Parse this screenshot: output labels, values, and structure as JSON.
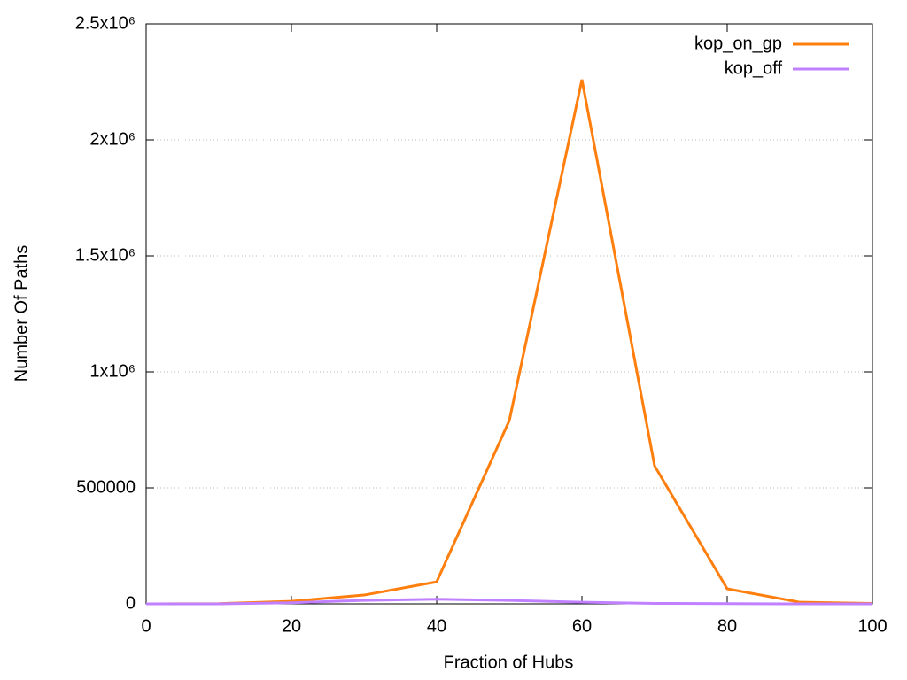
{
  "chart_data": {
    "type": "line",
    "x_label": "Fraction of Hubs",
    "y_label": "Number Of Paths",
    "x": [
      0,
      10,
      20,
      30,
      40,
      50,
      60,
      70,
      80,
      90,
      100
    ],
    "series": [
      {
        "name": "kop_on_gp",
        "color": "#ff7f0e",
        "values": [
          0,
          1000,
          11000,
          38000,
          95000,
          790000,
          2260000,
          595000,
          65000,
          7000,
          2000
        ]
      },
      {
        "name": "kop_off",
        "color": "#c080ff",
        "values": [
          0,
          0,
          5000,
          15000,
          20000,
          15000,
          7000,
          2000,
          1000,
          0,
          0
        ]
      }
    ],
    "xlim": [
      0,
      100
    ],
    "xticks": [
      0,
      20,
      40,
      60,
      80,
      100
    ],
    "ylim": [
      0,
      2500000
    ],
    "yticks": [
      0,
      500000,
      {
        "value": 1000000,
        "label": "1x10⁶"
      },
      {
        "value": 1500000,
        "label": "1.5x10⁶"
      },
      {
        "value": 2000000,
        "label": "2x10⁶"
      },
      {
        "value": 2500000,
        "label": "2.5x10⁶"
      }
    ],
    "grid": "y",
    "legend": "top-right"
  }
}
